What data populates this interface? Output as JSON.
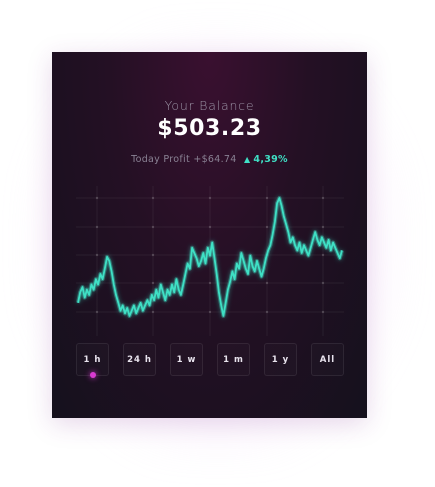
{
  "wallet": {
    "balance_label": "Your Balance",
    "balance": "$503.23",
    "profit_label": "Today Profit",
    "profit_value": "+$64.74",
    "profit_pct": "4,39%"
  },
  "colors": {
    "accent": "#3fe0c5",
    "active_dot": "#d93bd1",
    "background": "#1c1020"
  },
  "ranges": [
    {
      "label": "1 h",
      "active": true
    },
    {
      "label": "24 h",
      "active": false
    },
    {
      "label": "1 w",
      "active": false
    },
    {
      "label": "1 m",
      "active": false
    },
    {
      "label": "1 y",
      "active": false
    },
    {
      "label": "All",
      "active": false
    }
  ],
  "chart_data": {
    "type": "line",
    "grid": true,
    "values": [
      0.2,
      0.28,
      0.32,
      0.24,
      0.3,
      0.26,
      0.34,
      0.3,
      0.38,
      0.34,
      0.42,
      0.38,
      0.46,
      0.55,
      0.52,
      0.44,
      0.34,
      0.26,
      0.2,
      0.14,
      0.18,
      0.12,
      0.16,
      0.1,
      0.14,
      0.18,
      0.12,
      0.16,
      0.2,
      0.14,
      0.18,
      0.22,
      0.18,
      0.26,
      0.22,
      0.3,
      0.24,
      0.34,
      0.28,
      0.22,
      0.3,
      0.26,
      0.34,
      0.28,
      0.38,
      0.3,
      0.26,
      0.34,
      0.42,
      0.5,
      0.46,
      0.62,
      0.58,
      0.54,
      0.48,
      0.52,
      0.58,
      0.5,
      0.62,
      0.56,
      0.66,
      0.54,
      0.42,
      0.28,
      0.18,
      0.1,
      0.2,
      0.3,
      0.36,
      0.44,
      0.38,
      0.5,
      0.46,
      0.58,
      0.52,
      0.46,
      0.42,
      0.56,
      0.48,
      0.44,
      0.52,
      0.46,
      0.4,
      0.46,
      0.54,
      0.6,
      0.64,
      0.72,
      0.82,
      0.96,
      1.0,
      0.94,
      0.86,
      0.8,
      0.74,
      0.66,
      0.7,
      0.64,
      0.6,
      0.66,
      0.58,
      0.64,
      0.6,
      0.56,
      0.62,
      0.68,
      0.74,
      0.68,
      0.64,
      0.7,
      0.66,
      0.62,
      0.68,
      0.6,
      0.66,
      0.62,
      0.58,
      0.54,
      0.6
    ]
  }
}
